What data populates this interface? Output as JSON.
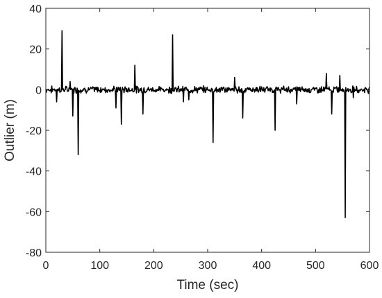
{
  "chart_data": {
    "type": "line",
    "title": "",
    "xlabel": "Time (sec)",
    "ylabel": "Outlier (m)",
    "xlim": [
      0,
      600
    ],
    "ylim": [
      -80,
      40
    ],
    "x_ticks": [
      0,
      100,
      200,
      300,
      400,
      500,
      600
    ],
    "y_ticks": [
      -80,
      -60,
      -40,
      -20,
      0,
      20,
      40
    ],
    "x_tick_labels": [
      "0",
      "100",
      "200",
      "300",
      "400",
      "500",
      "600"
    ],
    "y_tick_labels": [
      "-80",
      "-60",
      "-40",
      "-20",
      "0",
      "20",
      "40"
    ],
    "grid": false,
    "line_color": "#000000",
    "series": [
      {
        "sample_interval_sec": 1,
        "baseline_noise_range": [
          -2,
          2
        ],
        "spikes": [
          {
            "x": 20,
            "y": -6
          },
          {
            "x": 30,
            "y": 29
          },
          {
            "x": 45,
            "y": 4
          },
          {
            "x": 50,
            "y": -13
          },
          {
            "x": 60,
            "y": -32
          },
          {
            "x": 130,
            "y": -9
          },
          {
            "x": 140,
            "y": -17
          },
          {
            "x": 165,
            "y": 12
          },
          {
            "x": 180,
            "y": -12
          },
          {
            "x": 235,
            "y": 27
          },
          {
            "x": 255,
            "y": -6
          },
          {
            "x": 265,
            "y": -5
          },
          {
            "x": 310,
            "y": -26
          },
          {
            "x": 350,
            "y": 6
          },
          {
            "x": 365,
            "y": -14
          },
          {
            "x": 425,
            "y": -20
          },
          {
            "x": 465,
            "y": -7
          },
          {
            "x": 520,
            "y": 8
          },
          {
            "x": 530,
            "y": -12
          },
          {
            "x": 545,
            "y": 7
          },
          {
            "x": 555,
            "y": -63
          },
          {
            "x": 570,
            "y": -4
          }
        ]
      }
    ]
  }
}
